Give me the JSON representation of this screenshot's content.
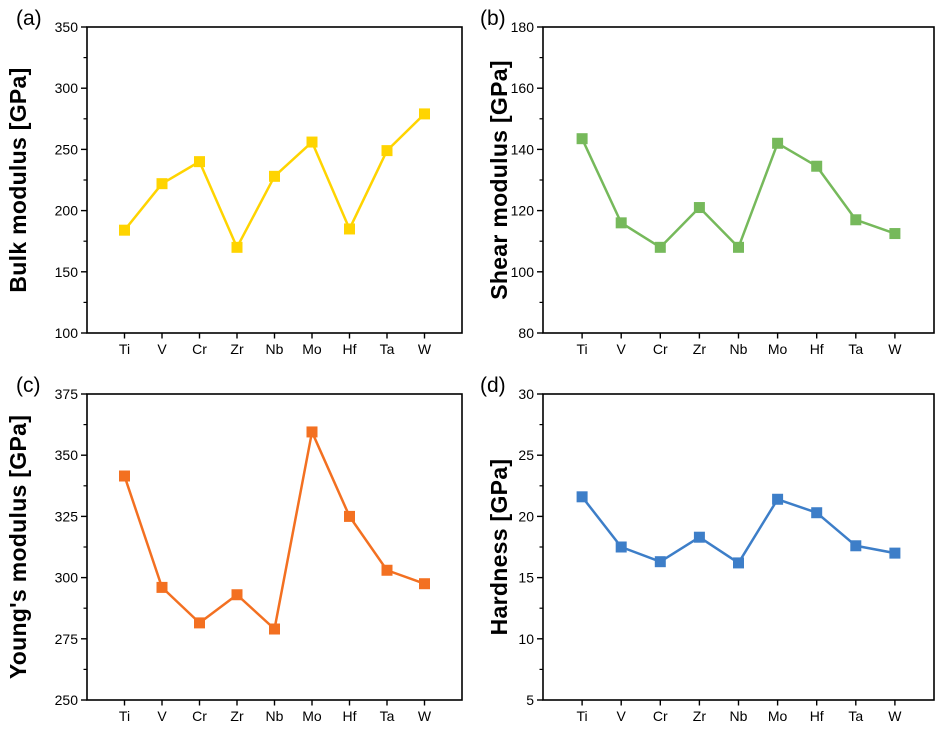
{
  "figure": {
    "background": "#ffffff",
    "frame_color": "#000000",
    "tick_label_color": "#000000"
  },
  "chart_data": [
    {
      "type": "line",
      "panel_label": "(a)",
      "title": "",
      "xlabel": "",
      "ylabel": "Bulk modulus [GPa]",
      "categories": [
        "Ti",
        "V",
        "Cr",
        "Zr",
        "Nb",
        "Mo",
        "Hf",
        "Ta",
        "W"
      ],
      "values": [
        184,
        222,
        240,
        170,
        228,
        256,
        185,
        249,
        279
      ],
      "ylim": [
        100,
        350
      ],
      "ytick_step": 50,
      "marker": "square",
      "color": "#FFD400",
      "grid": false,
      "legend": "none"
    },
    {
      "type": "line",
      "panel_label": "(b)",
      "title": "",
      "xlabel": "",
      "ylabel": "Shear modulus [GPa]",
      "categories": [
        "Ti",
        "V",
        "Cr",
        "Zr",
        "Nb",
        "Mo",
        "Hf",
        "Ta",
        "W"
      ],
      "values": [
        143.5,
        116,
        108,
        121,
        108,
        142,
        134.5,
        117,
        112.5
      ],
      "ylim": [
        80,
        180
      ],
      "ytick_step": 20,
      "marker": "square",
      "color": "#76B95B",
      "grid": false,
      "legend": "none"
    },
    {
      "type": "line",
      "panel_label": "(c)",
      "title": "",
      "xlabel": "",
      "ylabel": "Young's modulus [GPa]",
      "categories": [
        "Ti",
        "V",
        "Cr",
        "Zr",
        "Nb",
        "Mo",
        "Hf",
        "Ta",
        "W"
      ],
      "values": [
        341.5,
        296,
        281.5,
        293,
        279,
        359.5,
        325,
        303,
        297.5
      ],
      "ylim": [
        250,
        375
      ],
      "ytick_step": 25,
      "marker": "square",
      "color": "#F37021",
      "grid": false,
      "legend": "none"
    },
    {
      "type": "line",
      "panel_label": "(d)",
      "title": "",
      "xlabel": "",
      "ylabel": "Hardness [GPa]",
      "categories": [
        "Ti",
        "V",
        "Cr",
        "Zr",
        "Nb",
        "Mo",
        "Hf",
        "Ta",
        "W"
      ],
      "values": [
        21.6,
        17.5,
        16.3,
        18.3,
        16.2,
        21.4,
        20.3,
        17.6,
        17
      ],
      "ylim": [
        5,
        30
      ],
      "ytick_step": 5,
      "marker": "square",
      "color": "#3D7EC8",
      "grid": false,
      "legend": "none"
    }
  ]
}
